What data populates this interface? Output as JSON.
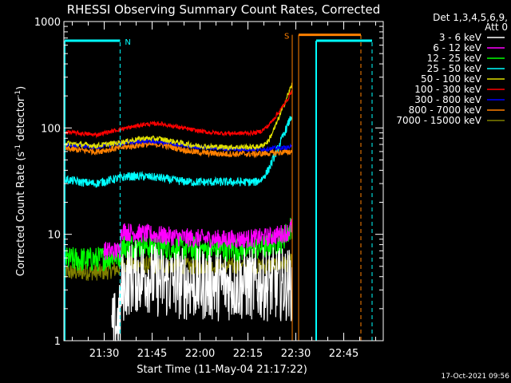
{
  "chart_data": {
    "type": "line",
    "title": "RHESSI Observing Summary Count Rates, Corrected",
    "xlabel": "Start Time (11-May-04 21:17:22)",
    "ylabel": "Corrected Count Rate (s",
    "ylabel_exp1": "-1",
    "ylabel_mid": " detector",
    "ylabel_exp2": "-1",
    "ylabel_end": ")",
    "xlim_min": [
      0,
      100
    ],
    "ylim": [
      1,
      1000
    ],
    "yscale": "log",
    "yticks": [
      1,
      10,
      100,
      1000
    ],
    "ytick_labels": [
      "1",
      "10",
      "100",
      "1000"
    ],
    "xticks_min": [
      12.63,
      27.63,
      42.63,
      57.63,
      72.63,
      87.63
    ],
    "xtick_labels": [
      "21:30",
      "21:45",
      "22:00",
      "22:15",
      "22:30",
      "22:45"
    ],
    "legend": {
      "placement": "right",
      "header_line1": "Det 1,3,4,5,6,9,",
      "header_line2": "Att 0",
      "entries": [
        {
          "label": "3 - 6 keV",
          "color": "#ffffff"
        },
        {
          "label": "6 - 12 keV",
          "color": "#ff00ff"
        },
        {
          "label": "12 - 25 keV",
          "color": "#00ff00"
        },
        {
          "label": "25 - 50 keV",
          "color": "#00ffff"
        },
        {
          "label": "50 - 100 keV",
          "color": "#e0e000"
        },
        {
          "label": "100 - 300 keV",
          "color": "#ff0000"
        },
        {
          "label": "300 - 800 keV",
          "color": "#0000ff"
        },
        {
          "label": "800 - 7000 keV",
          "color": "#ff8000"
        },
        {
          "label": "7000 - 15000 keV",
          "color": "#808000"
        }
      ]
    },
    "annotations": {
      "N_label": "N",
      "S_label": "S",
      "timestamp": "17-Oct-2021 09:56"
    },
    "bands": {
      "night": [
        {
          "from": 0,
          "to": 17.6
        },
        {
          "from": 79.0,
          "to": 96.5
        }
      ],
      "saa": [
        {
          "from": 71.5,
          "to": 93.0
        }
      ]
    },
    "series": [
      {
        "name": "3 - 6 keV",
        "color": "#ffffff",
        "x": [
          15,
          17.6,
          18,
          20,
          25,
          30,
          40,
          50,
          60,
          65,
          70,
          71.5
        ],
        "y": [
          1.2,
          1.6,
          3,
          3.8,
          4.2,
          3.6,
          3.4,
          3.4,
          3.4,
          3.4,
          3.4,
          3.4
        ],
        "noise": 0.35
      },
      {
        "name": "6 - 12 keV",
        "color": "#ff00ff",
        "x": [
          12.5,
          17.6,
          18,
          20,
          30,
          40,
          50,
          55,
          60,
          65,
          70,
          71.5
        ],
        "y": [
          7,
          7,
          11,
          10.5,
          9.8,
          9.2,
          9,
          9,
          9.2,
          9.5,
          10.5,
          12
        ],
        "noise": 0.09
      },
      {
        "name": "12 - 25 keV",
        "color": "#00ff00",
        "x": [
          0,
          10,
          12.5,
          17.6,
          18,
          25,
          35,
          45,
          55,
          62,
          68,
          71.5
        ],
        "y": [
          5.8,
          5.8,
          6,
          6.4,
          7.8,
          7.8,
          7.4,
          7.2,
          7.2,
          7.5,
          8.6,
          12
        ],
        "noise": 0.12
      },
      {
        "name": "25 - 50 keV",
        "color": "#00ffff",
        "x": [
          0,
          5,
          10,
          17.6,
          20,
          25,
          30,
          35,
          40,
          45,
          50,
          55,
          60,
          62,
          64,
          66,
          68,
          70,
          71.5
        ],
        "y": [
          33,
          31,
          30,
          34,
          35,
          35,
          34,
          32,
          31,
          31,
          31,
          31,
          31,
          33,
          40,
          55,
          75,
          105,
          135
        ],
        "noise": 0.04
      },
      {
        "name": "50 - 100 keV",
        "color": "#e0e000",
        "x": [
          0,
          5,
          10,
          17.6,
          25,
          30,
          35,
          40,
          45,
          50,
          55,
          60,
          62,
          64,
          66,
          68,
          70,
          71.5
        ],
        "y": [
          72,
          70,
          68,
          73,
          80,
          79,
          74,
          69,
          67,
          66,
          66,
          66,
          68,
          75,
          100,
          140,
          200,
          260
        ],
        "noise": 0.025
      },
      {
        "name": "100 - 300 keV",
        "color": "#ff0000",
        "x": [
          0,
          5,
          10,
          17.6,
          25,
          30,
          35,
          40,
          45,
          50,
          55,
          60,
          62,
          64,
          66,
          68,
          70,
          71.5
        ],
        "y": [
          92,
          89,
          86,
          97,
          108,
          110,
          103,
          96,
          91,
          89,
          89,
          90,
          94,
          105,
          125,
          150,
          185,
          230
        ],
        "noise": 0.02
      },
      {
        "name": "300 - 800 keV",
        "color": "#0000ff",
        "x": [
          0,
          5,
          10,
          17.6,
          25,
          30,
          35,
          40,
          45,
          50,
          55,
          60,
          65,
          71.5
        ],
        "y": [
          70,
          68,
          66,
          72,
          75,
          74,
          70,
          67,
          65,
          64,
          63,
          63,
          64,
          66
        ],
        "noise": 0.02
      },
      {
        "name": "800 - 7000 keV",
        "color": "#ff8000",
        "x": [
          0,
          5,
          10,
          17.6,
          25,
          30,
          35,
          40,
          45,
          50,
          55,
          60,
          65,
          71.5
        ],
        "y": [
          64,
          62,
          60,
          65,
          70,
          70,
          65,
          60,
          58,
          57,
          57,
          57,
          58,
          60
        ],
        "noise": 0.03
      },
      {
        "name": "7000 - 15000 keV",
        "color": "#808000",
        "x": [
          0,
          10,
          12.5,
          17.6,
          18,
          30,
          40,
          50,
          60,
          65,
          70,
          71.5
        ],
        "y": [
          4.4,
          4.4,
          4.4,
          4.8,
          5.2,
          5.1,
          5.0,
          5.0,
          5.0,
          5.1,
          5.3,
          5.5
        ],
        "noise": 0.08
      }
    ]
  }
}
